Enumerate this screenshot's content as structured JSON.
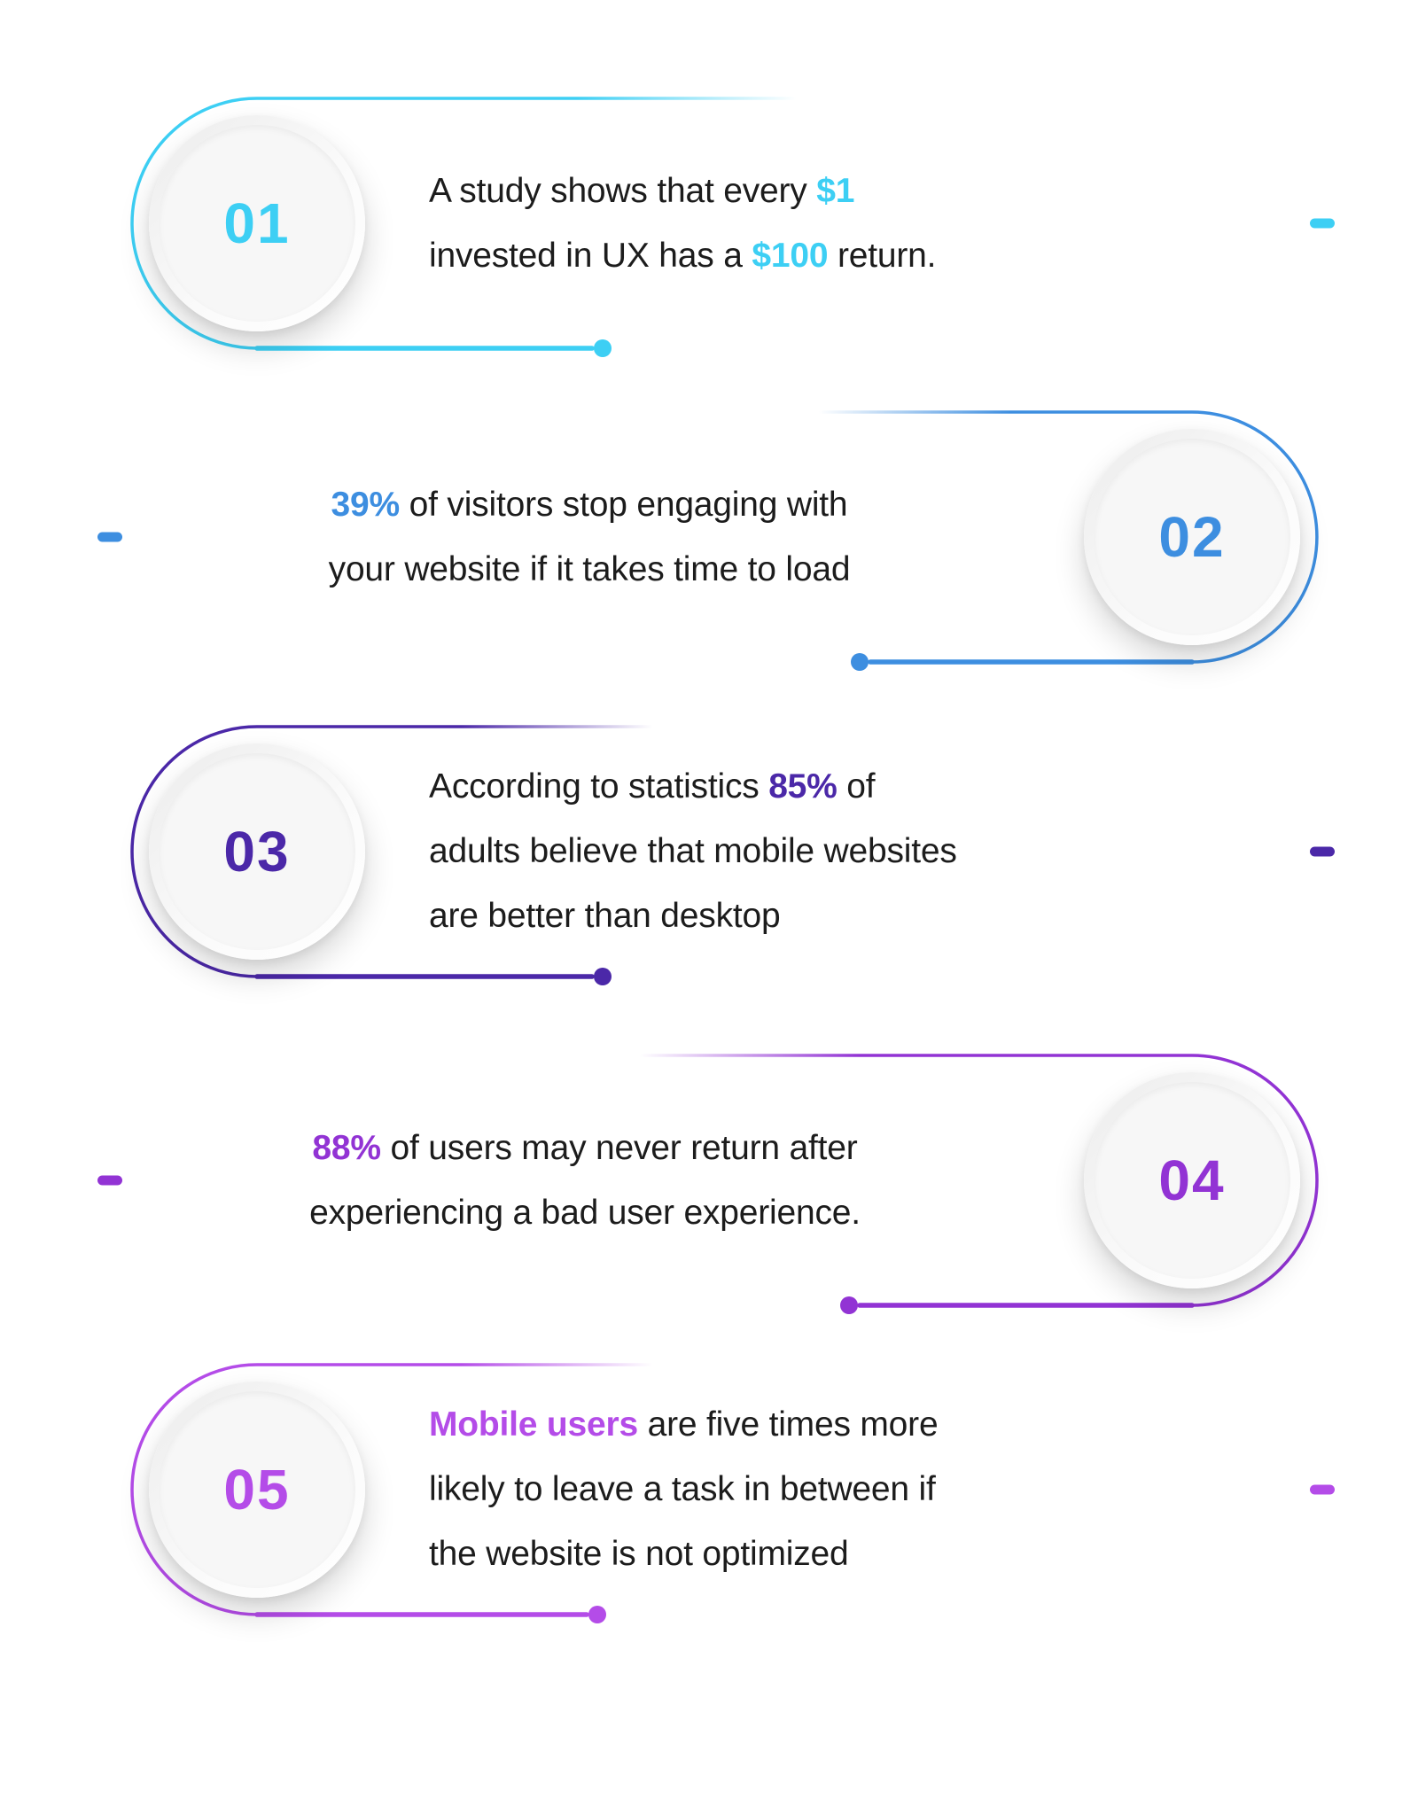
{
  "background_color": "#ffffff",
  "text_color": "#1c1c1c",
  "items": [
    {
      "number": "01",
      "accent_color": "#3DCFF4",
      "segments": [
        {
          "text": "A study shows that every ",
          "highlight": false
        },
        {
          "text": "$1",
          "highlight": true
        },
        {
          "text": "\ninvested in UX has a ",
          "highlight": false
        },
        {
          "text": "$100",
          "highlight": true
        },
        {
          "text": " return.",
          "highlight": false
        }
      ]
    },
    {
      "number": "02",
      "accent_color": "#3D8EE0",
      "segments": [
        {
          "text": "39%",
          "highlight": true
        },
        {
          "text": " of visitors stop engaging with\nyour website if it takes time to load",
          "highlight": false
        }
      ]
    },
    {
      "number": "03",
      "accent_color": "#4B28A8",
      "segments": [
        {
          "text": "According to statistics ",
          "highlight": false
        },
        {
          "text": "85%",
          "highlight": true
        },
        {
          "text": " of\nadults believe that mobile websites\nare better than desktop",
          "highlight": false
        }
      ]
    },
    {
      "number": "04",
      "accent_color": "#9233D4",
      "segments": [
        {
          "text": "88%",
          "highlight": true
        },
        {
          "text": " of users may never return after\nexperiencing a bad user experience.",
          "highlight": false
        }
      ]
    },
    {
      "number": "05",
      "accent_color": "#B44CE8",
      "segments": [
        {
          "text": "Mobile users",
          "highlight": true
        },
        {
          "text": " are five times more\nlikely to leave a task in between if\nthe website is not optimized",
          "highlight": false
        }
      ]
    }
  ]
}
